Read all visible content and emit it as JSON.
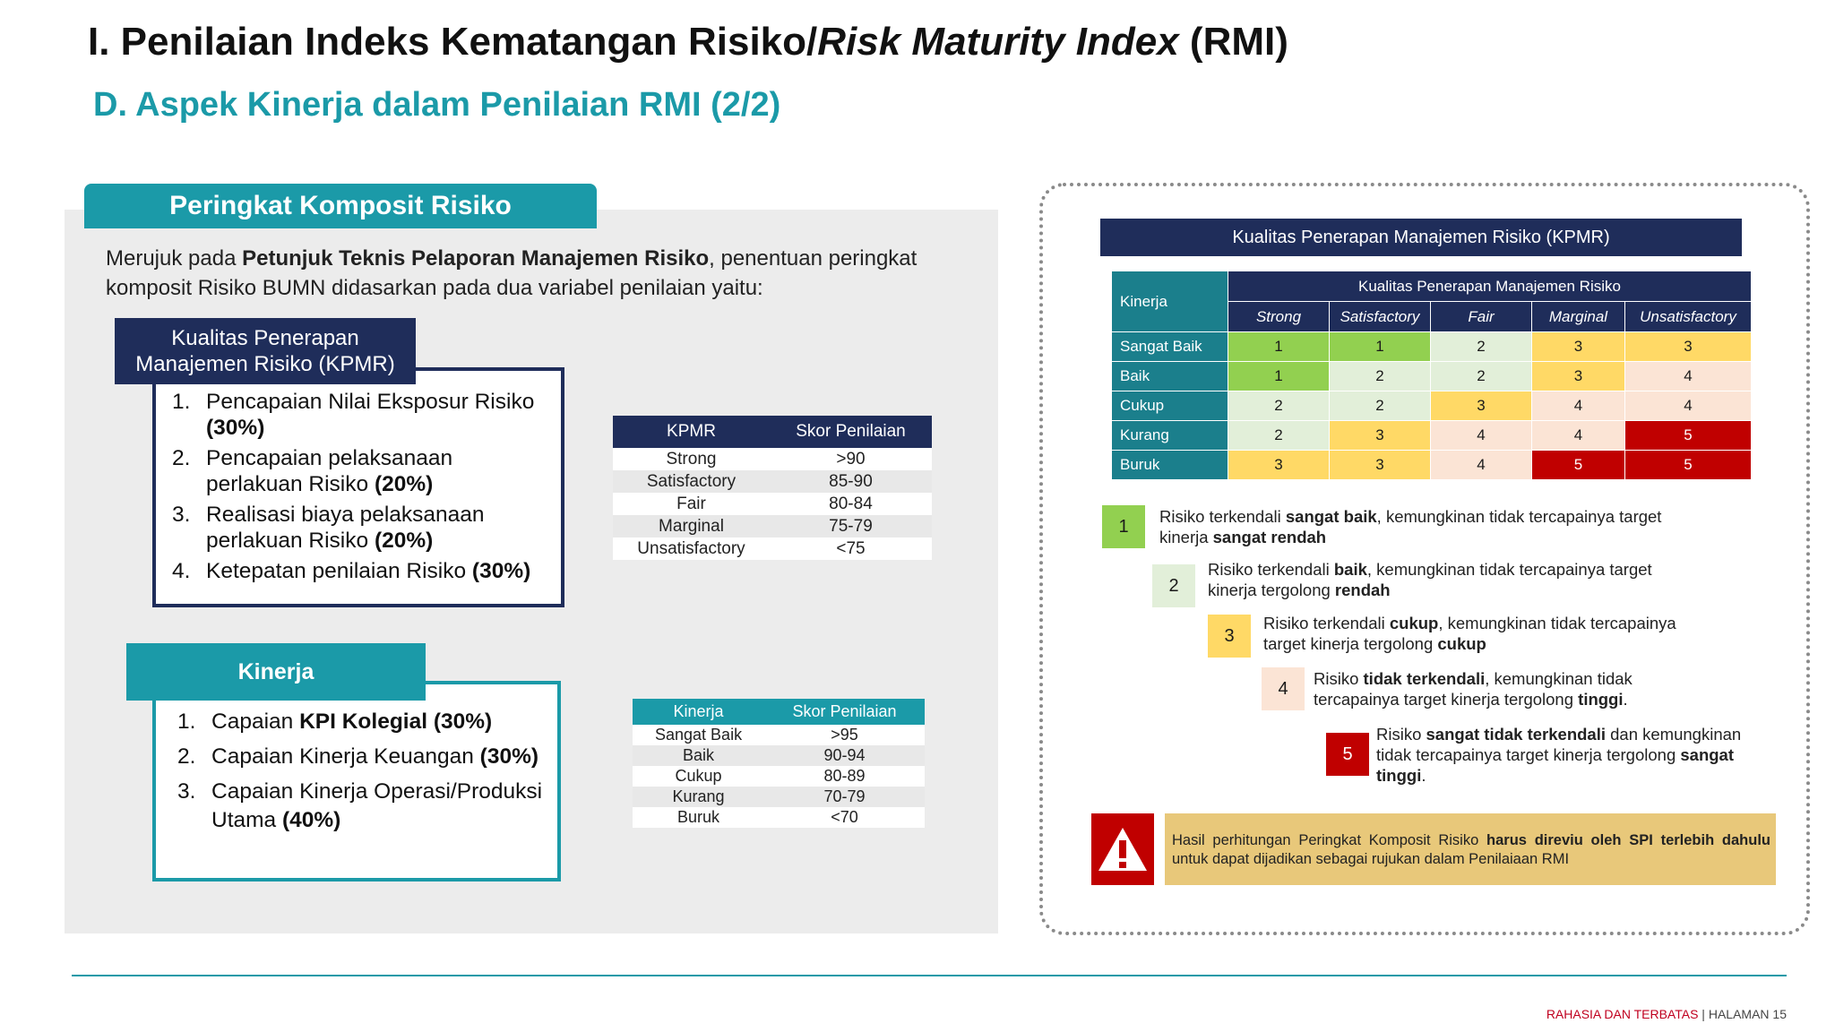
{
  "header": {
    "title_prefix": "I. Penilaian Indeks Kematangan Risiko/",
    "title_italic": "Risk Maturity Index",
    "title_suffix": " (RMI)",
    "subtitle": "D. Aspek Kinerja dalam Penilaian RMI (2/2)"
  },
  "left": {
    "panel_title": "Peringkat Komposit Risiko",
    "intro_1": "Merujuk pada ",
    "intro_bold": "Petunjuk Teknis Pelaporan Manajemen Risiko",
    "intro_2": ", penentuan peringkat komposit Risiko BUMN didasarkan pada dua variabel penilaian yaitu:",
    "kpmr_label_1": "Kualitas Penerapan",
    "kpmr_label_2": "Manajemen Risiko (KPMR)",
    "kpmr_items": [
      {
        "num": "1.",
        "text": "Pencapaian Nilai Eksposur Risiko ",
        "bold": "(30%)"
      },
      {
        "num": "2.",
        "text": "Pencapaian pelaksanaan perlakuan Risiko ",
        "bold": "(20%)"
      },
      {
        "num": "3.",
        "text": "Realisasi biaya pelaksanaan perlakuan Risiko ",
        "bold": "(20%)"
      },
      {
        "num": "4.",
        "text": "Ketepatan penilaian Risiko ",
        "bold": "(30%)"
      }
    ],
    "kinerja_label": "Kinerja",
    "kinerja_items": [
      {
        "num": "1.",
        "text": "Capaian ",
        "bold": "KPI Kolegial (30%)"
      },
      {
        "num": "2.",
        "text": "Capaian Kinerja Keuangan ",
        "bold": "(30%)"
      },
      {
        "num": "3.",
        "text": "Capaian Kinerja Operasi/Produksi Utama ",
        "bold": "(40%)"
      }
    ],
    "kpmr_table": {
      "headers": [
        "KPMR",
        "Skor Penilaian"
      ],
      "rows": [
        [
          "Strong",
          ">90"
        ],
        [
          "Satisfactory",
          "85-90"
        ],
        [
          "Fair",
          "80-84"
        ],
        [
          "Marginal",
          "75-79"
        ],
        [
          "Unsatisfactory",
          "<75"
        ]
      ]
    },
    "kinerja_table": {
      "headers": [
        "Kinerja",
        "Skor Penilaian"
      ],
      "rows": [
        [
          "Sangat Baik",
          ">95"
        ],
        [
          "Baik",
          "90-94"
        ],
        [
          "Cukup",
          "80-89"
        ],
        [
          "Kurang",
          "70-79"
        ],
        [
          "Buruk",
          "<70"
        ]
      ]
    }
  },
  "right": {
    "title": "Kualitas Penerapan Manajemen Risiko (KPMR)",
    "matrix": {
      "corner": "Kinerja",
      "group_header": "Kualitas Penerapan Manajemen Risiko",
      "columns": [
        "Strong",
        "Satisfactory",
        "Fair",
        "Marginal",
        "Unsatisfactory"
      ],
      "rows": [
        {
          "label": "Sangat Baik",
          "values": [
            "1",
            "1",
            "2",
            "3",
            "3"
          ]
        },
        {
          "label": "Baik",
          "values": [
            "1",
            "2",
            "2",
            "3",
            "4"
          ]
        },
        {
          "label": "Cukup",
          "values": [
            "2",
            "2",
            "3",
            "4",
            "4"
          ]
        },
        {
          "label": "Kurang",
          "values": [
            "2",
            "3",
            "4",
            "4",
            "5"
          ]
        },
        {
          "label": "Buruk",
          "values": [
            "3",
            "3",
            "4",
            "5",
            "5"
          ]
        }
      ]
    },
    "legend": [
      {
        "num": "1",
        "parts": [
          [
            "Risiko terkendali ",
            false
          ],
          [
            "sangat baik",
            true
          ],
          [
            ", kemungkinan tidak tercapainya target kinerja ",
            false
          ],
          [
            "sangat rendah",
            true
          ]
        ]
      },
      {
        "num": "2",
        "parts": [
          [
            "Risiko terkendali ",
            false
          ],
          [
            "baik",
            true
          ],
          [
            ", kemungkinan tidak tercapainya target kinerja tergolong ",
            false
          ],
          [
            "rendah",
            true
          ]
        ]
      },
      {
        "num": "3",
        "parts": [
          [
            "Risiko terkendali ",
            false
          ],
          [
            "cukup",
            true
          ],
          [
            ", kemungkinan tidak tercapainya target kinerja tergolong ",
            false
          ],
          [
            "cukup",
            true
          ]
        ]
      },
      {
        "num": "4",
        "parts": [
          [
            "Risiko ",
            false
          ],
          [
            "tidak terkendali",
            true
          ],
          [
            ", kemungkinan tidak tercapainya target kinerja tergolong ",
            false
          ],
          [
            "tinggi",
            true
          ],
          [
            ".",
            false
          ]
        ]
      },
      {
        "num": "5",
        "parts": [
          [
            "Risiko ",
            false
          ],
          [
            "sangat tidak terkendali",
            true
          ],
          [
            " dan kemungkinan tidak tercapainya target kinerja tergolong ",
            false
          ],
          [
            "sangat tinggi",
            true
          ],
          [
            ".",
            false
          ]
        ]
      }
    ],
    "warning_1": "Hasil perhitungan Peringkat Komposit Risiko ",
    "warning_bold": "harus direviu oleh SPI terlebih dahulu",
    "warning_2": " untuk dapat dijadikan sebagai rujukan dalam Penilaiaan RMI"
  },
  "footer": {
    "confidential": "RAHASIA DAN TERBATAS",
    "separator": " | ",
    "page": "HALAMAN 15"
  },
  "colors": {
    "navy": "#1f2d5a",
    "teal": "#1b9aa8",
    "level_1": "#92d050",
    "level_2": "#e2efd9",
    "level_3": "#ffd966",
    "level_4": "#fbe4d5",
    "level_5": "#c00000"
  }
}
